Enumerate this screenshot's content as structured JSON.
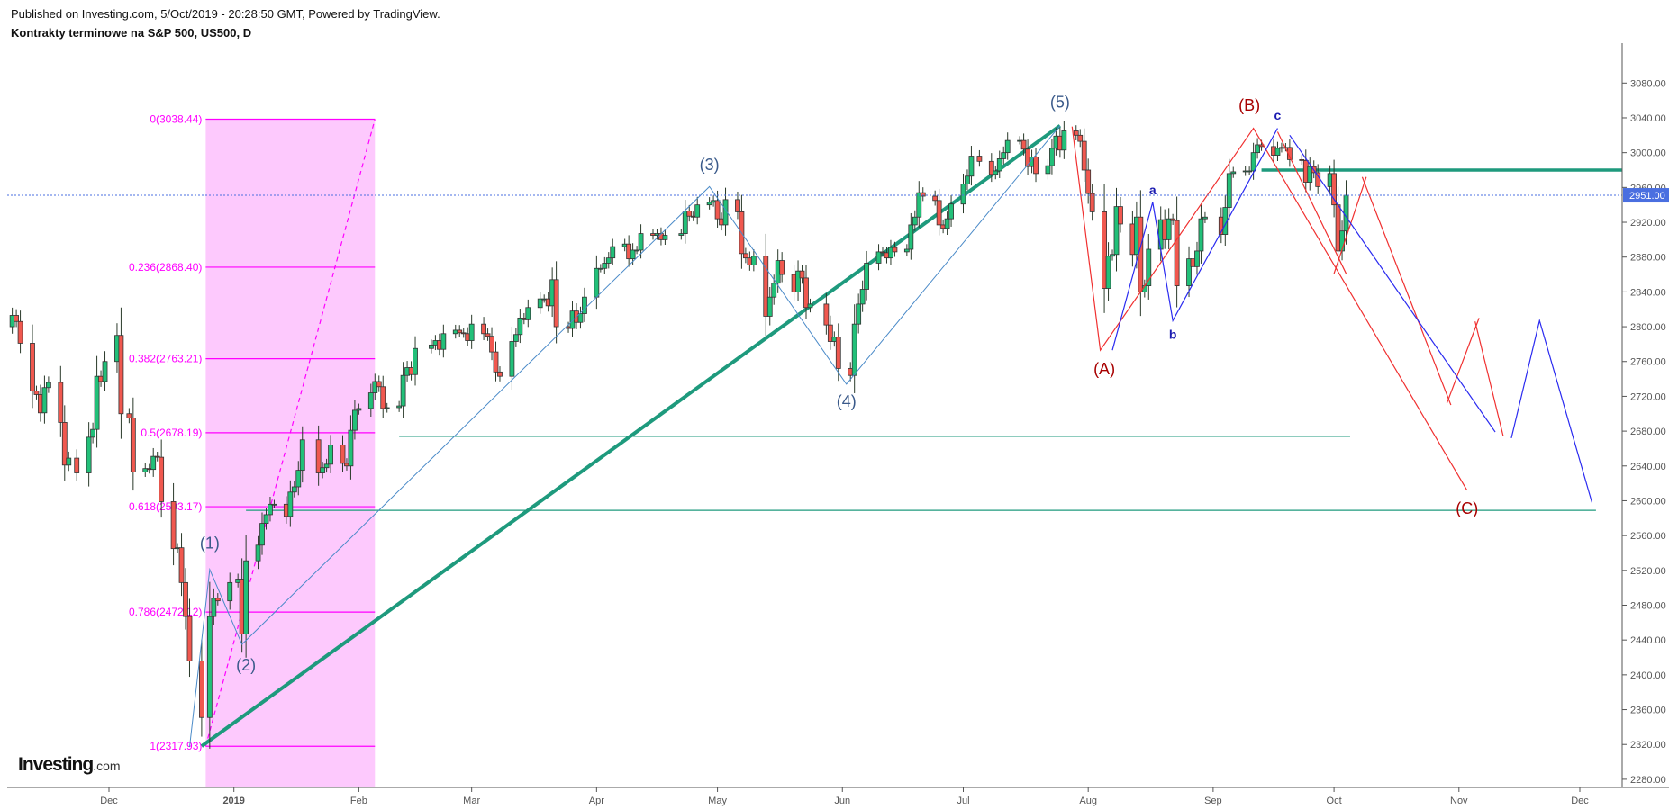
{
  "header": {
    "published": "Published on Investing.com, 5/Oct/2019 - 20:28:50 GMT, Powered by TradingView.",
    "title": "Kontrakty terminowe na S&P 500, US500, D"
  },
  "logo": {
    "main": "Investing",
    "suffix": ".com"
  },
  "colors": {
    "up": "#22c079",
    "down": "#f0584f",
    "teal": "#1e9a7d",
    "fib": "#ff00ff",
    "fib_fill": "#fdc9fd",
    "elliott": "#4a8ac8",
    "abc_blue": "#2a2af0",
    "abc_red": "#f03030",
    "last_price": "#4a6fe0"
  },
  "chart_data": {
    "type": "candlestick",
    "title": "Kontrakty terminowe na S&P 500, US500, D",
    "ylim": [
      2260,
      3110
    ],
    "y_ticks": [
      2280,
      2320,
      2360,
      2400,
      2440,
      2480,
      2520,
      2560,
      2600,
      2640,
      2680,
      2720,
      2760,
      2800,
      2840,
      2880,
      2920,
      2960,
      3000,
      3040,
      3080
    ],
    "x_ticks": [
      {
        "label": "Dec",
        "date": "2018-12-01"
      },
      {
        "label": "2019",
        "date": "2019-01-01",
        "bold": true
      },
      {
        "label": "Feb",
        "date": "2019-02-01"
      },
      {
        "label": "Mar",
        "date": "2019-03-01"
      },
      {
        "label": "Apr",
        "date": "2019-04-01"
      },
      {
        "label": "May",
        "date": "2019-05-01"
      },
      {
        "label": "Jun",
        "date": "2019-06-01"
      },
      {
        "label": "Jul",
        "date": "2019-07-01"
      },
      {
        "label": "Aug",
        "date": "2019-08-01"
      },
      {
        "label": "Sep",
        "date": "2019-09-01"
      },
      {
        "label": "Oct",
        "date": "2019-10-01"
      },
      {
        "label": "Nov",
        "date": "2019-11-01"
      },
      {
        "label": "Dec",
        "date": "2019-12-01"
      }
    ],
    "last_price": {
      "value": 2951.0,
      "label": "2951.00"
    },
    "start_open": 2800,
    "closes": [
      [
        "2018-11-07",
        2813
      ],
      [
        "2018-11-08",
        2806
      ],
      [
        "2018-11-09",
        2781
      ],
      [
        "2018-11-12",
        2726
      ],
      [
        "2018-11-13",
        2722
      ],
      [
        "2018-11-14",
        2701
      ],
      [
        "2018-11-15",
        2730
      ],
      [
        "2018-11-16",
        2736
      ],
      [
        "2018-11-19",
        2690
      ],
      [
        "2018-11-20",
        2641
      ],
      [
        "2018-11-21",
        2649
      ],
      [
        "2018-11-23",
        2632
      ],
      [
        "2018-11-26",
        2673
      ],
      [
        "2018-11-27",
        2682
      ],
      [
        "2018-11-28",
        2743
      ],
      [
        "2018-11-29",
        2737
      ],
      [
        "2018-11-30",
        2760
      ],
      [
        "2018-12-03",
        2790
      ],
      [
        "2018-12-04",
        2700
      ],
      [
        "2018-12-06",
        2695
      ],
      [
        "2018-12-07",
        2633
      ],
      [
        "2018-12-10",
        2637
      ],
      [
        "2018-12-11",
        2636
      ],
      [
        "2018-12-12",
        2651
      ],
      [
        "2018-12-13",
        2650
      ],
      [
        "2018-12-14",
        2599
      ],
      [
        "2018-12-17",
        2545
      ],
      [
        "2018-12-18",
        2546
      ],
      [
        "2018-12-19",
        2506
      ],
      [
        "2018-12-20",
        2467
      ],
      [
        "2018-12-21",
        2416
      ],
      [
        "2018-12-24",
        2351
      ],
      [
        "2018-12-26",
        2467
      ],
      [
        "2018-12-27",
        2488
      ],
      [
        "2018-12-28",
        2485
      ],
      [
        "2018-12-31",
        2506
      ],
      [
        "2019-01-02",
        2510
      ],
      [
        "2019-01-03",
        2447
      ],
      [
        "2019-01-04",
        2531
      ],
      [
        "2019-01-07",
        2549
      ],
      [
        "2019-01-08",
        2574
      ],
      [
        "2019-01-09",
        2584
      ],
      [
        "2019-01-10",
        2596
      ],
      [
        "2019-01-11",
        2596
      ],
      [
        "2019-01-14",
        2582
      ],
      [
        "2019-01-15",
        2610
      ],
      [
        "2019-01-16",
        2616
      ],
      [
        "2019-01-17",
        2635
      ],
      [
        "2019-01-18",
        2670
      ],
      [
        "2019-01-22",
        2632
      ],
      [
        "2019-01-23",
        2638
      ],
      [
        "2019-01-24",
        2642
      ],
      [
        "2019-01-25",
        2664
      ],
      [
        "2019-01-28",
        2643
      ],
      [
        "2019-01-29",
        2640
      ],
      [
        "2019-01-30",
        2681
      ],
      [
        "2019-01-31",
        2704
      ],
      [
        "2019-02-01",
        2706
      ],
      [
        "2019-02-04",
        2724
      ],
      [
        "2019-02-05",
        2737
      ],
      [
        "2019-02-06",
        2731
      ],
      [
        "2019-02-07",
        2706
      ],
      [
        "2019-02-08",
        2707
      ],
      [
        "2019-02-11",
        2709
      ],
      [
        "2019-02-12",
        2744
      ],
      [
        "2019-02-13",
        2753
      ],
      [
        "2019-02-14",
        2745
      ],
      [
        "2019-02-15",
        2775
      ],
      [
        "2019-02-19",
        2779
      ],
      [
        "2019-02-20",
        2784
      ],
      [
        "2019-02-21",
        2774
      ],
      [
        "2019-02-22",
        2792
      ],
      [
        "2019-02-25",
        2796
      ],
      [
        "2019-02-26",
        2793
      ],
      [
        "2019-02-27",
        2792
      ],
      [
        "2019-02-28",
        2784
      ],
      [
        "2019-03-01",
        2803
      ],
      [
        "2019-03-04",
        2792
      ],
      [
        "2019-03-05",
        2789
      ],
      [
        "2019-03-06",
        2771
      ],
      [
        "2019-03-07",
        2748
      ],
      [
        "2019-03-08",
        2743
      ],
      [
        "2019-03-11",
        2783
      ],
      [
        "2019-03-12",
        2791
      ],
      [
        "2019-03-13",
        2810
      ],
      [
        "2019-03-14",
        2808
      ],
      [
        "2019-03-15",
        2822
      ],
      [
        "2019-03-18",
        2832
      ],
      [
        "2019-03-19",
        2832
      ],
      [
        "2019-03-20",
        2824
      ],
      [
        "2019-03-21",
        2854
      ],
      [
        "2019-03-22",
        2800
      ],
      [
        "2019-03-25",
        2798
      ],
      [
        "2019-03-26",
        2818
      ],
      [
        "2019-03-27",
        2805
      ],
      [
        "2019-03-28",
        2815
      ],
      [
        "2019-03-29",
        2834
      ],
      [
        "2019-04-01",
        2867
      ],
      [
        "2019-04-02",
        2867
      ],
      [
        "2019-04-03",
        2873
      ],
      [
        "2019-04-04",
        2879
      ],
      [
        "2019-04-05",
        2892
      ],
      [
        "2019-04-08",
        2895
      ],
      [
        "2019-04-09",
        2878
      ],
      [
        "2019-04-10",
        2888
      ],
      [
        "2019-04-11",
        2888
      ],
      [
        "2019-04-12",
        2907
      ],
      [
        "2019-04-15",
        2905
      ],
      [
        "2019-04-16",
        2907
      ],
      [
        "2019-04-17",
        2900
      ],
      [
        "2019-04-18",
        2905
      ],
      [
        "2019-04-22",
        2907
      ],
      [
        "2019-04-23",
        2933
      ],
      [
        "2019-04-24",
        2927
      ],
      [
        "2019-04-25",
        2926
      ],
      [
        "2019-04-26",
        2940
      ],
      [
        "2019-04-29",
        2943
      ],
      [
        "2019-04-30",
        2945
      ],
      [
        "2019-05-01",
        2924
      ],
      [
        "2019-05-02",
        2917
      ],
      [
        "2019-05-03",
        2946
      ],
      [
        "2019-05-06",
        2932
      ],
      [
        "2019-05-07",
        2884
      ],
      [
        "2019-05-08",
        2879
      ],
      [
        "2019-05-09",
        2871
      ],
      [
        "2019-05-10",
        2881
      ],
      [
        "2019-05-13",
        2812
      ],
      [
        "2019-05-14",
        2834
      ],
      [
        "2019-05-15",
        2850
      ],
      [
        "2019-05-16",
        2876
      ],
      [
        "2019-05-17",
        2860
      ],
      [
        "2019-05-20",
        2840
      ],
      [
        "2019-05-21",
        2864
      ],
      [
        "2019-05-22",
        2856
      ],
      [
        "2019-05-23",
        2822
      ],
      [
        "2019-05-24",
        2826
      ],
      [
        "2019-05-28",
        2802
      ],
      [
        "2019-05-29",
        2783
      ],
      [
        "2019-05-30",
        2788
      ],
      [
        "2019-05-31",
        2752
      ],
      [
        "2019-06-03",
        2744
      ],
      [
        "2019-06-04",
        2803
      ],
      [
        "2019-06-05",
        2826
      ],
      [
        "2019-06-06",
        2843
      ],
      [
        "2019-06-07",
        2873
      ],
      [
        "2019-06-10",
        2886
      ],
      [
        "2019-06-11",
        2885
      ],
      [
        "2019-06-12",
        2879
      ],
      [
        "2019-06-13",
        2891
      ],
      [
        "2019-06-14",
        2886
      ],
      [
        "2019-06-17",
        2889
      ],
      [
        "2019-06-18",
        2917
      ],
      [
        "2019-06-19",
        2926
      ],
      [
        "2019-06-20",
        2954
      ],
      [
        "2019-06-21",
        2950
      ],
      [
        "2019-06-24",
        2945
      ],
      [
        "2019-06-25",
        2917
      ],
      [
        "2019-06-26",
        2913
      ],
      [
        "2019-06-27",
        2924
      ],
      [
        "2019-06-28",
        2941
      ],
      [
        "2019-07-01",
        2964
      ],
      [
        "2019-07-02",
        2973
      ],
      [
        "2019-07-03",
        2996
      ],
      [
        "2019-07-05",
        2990
      ],
      [
        "2019-07-08",
        2975
      ],
      [
        "2019-07-09",
        2979
      ],
      [
        "2019-07-10",
        2993
      ],
      [
        "2019-07-11",
        3000
      ],
      [
        "2019-07-12",
        3014
      ],
      [
        "2019-07-15",
        3014
      ],
      [
        "2019-07-16",
        3004
      ],
      [
        "2019-07-17",
        2984
      ],
      [
        "2019-07-18",
        2995
      ],
      [
        "2019-07-19",
        2976
      ],
      [
        "2019-07-22",
        2985
      ],
      [
        "2019-07-23",
        3005
      ],
      [
        "2019-07-24",
        3019
      ],
      [
        "2019-07-25",
        3003
      ],
      [
        "2019-07-26",
        3025
      ],
      [
        "2019-07-29",
        3020
      ],
      [
        "2019-07-30",
        3013
      ],
      [
        "2019-07-31",
        2980
      ],
      [
        "2019-08-01",
        2953
      ],
      [
        "2019-08-02",
        2932
      ],
      [
        "2019-08-05",
        2844
      ],
      [
        "2019-08-06",
        2881
      ],
      [
        "2019-08-07",
        2883
      ],
      [
        "2019-08-08",
        2938
      ],
      [
        "2019-08-09",
        2918
      ],
      [
        "2019-08-12",
        2883
      ],
      [
        "2019-08-13",
        2926
      ],
      [
        "2019-08-14",
        2840
      ],
      [
        "2019-08-15",
        2847
      ],
      [
        "2019-08-16",
        2889
      ],
      [
        "2019-08-19",
        2923
      ],
      [
        "2019-08-20",
        2900
      ],
      [
        "2019-08-21",
        2924
      ],
      [
        "2019-08-22",
        2922
      ],
      [
        "2019-08-23",
        2847
      ],
      [
        "2019-08-26",
        2878
      ],
      [
        "2019-08-27",
        2869
      ],
      [
        "2019-08-28",
        2887
      ],
      [
        "2019-08-29",
        2924
      ],
      [
        "2019-08-30",
        2926
      ],
      [
        "2019-09-03",
        2906
      ],
      [
        "2019-09-04",
        2937
      ],
      [
        "2019-09-05",
        2976
      ],
      [
        "2019-09-06",
        2978
      ],
      [
        "2019-09-09",
        2979
      ],
      [
        "2019-09-10",
        2979
      ],
      [
        "2019-09-11",
        3000
      ],
      [
        "2019-09-12",
        3009
      ],
      [
        "2019-09-13",
        3007
      ],
      [
        "2019-09-16",
        2997
      ],
      [
        "2019-09-17",
        3005
      ],
      [
        "2019-09-18",
        3006
      ],
      [
        "2019-09-19",
        3006
      ],
      [
        "2019-09-20",
        2992
      ],
      [
        "2019-09-23",
        2991
      ],
      [
        "2019-09-24",
        2966
      ],
      [
        "2019-09-25",
        2984
      ],
      [
        "2019-09-26",
        2977
      ],
      [
        "2019-09-27",
        2961
      ],
      [
        "2019-09-30",
        2976
      ],
      [
        "2019-10-01",
        2940
      ],
      [
        "2019-10-02",
        2887
      ],
      [
        "2019-10-03",
        2910
      ],
      [
        "2019-10-04",
        2951
      ]
    ],
    "fibonacci": {
      "from": "2018-12-25",
      "to": "2019-02-05",
      "low": 2317.93,
      "high": 3038.44,
      "levels": [
        {
          "label": "0(3038.44)",
          "price": 3038.44
        },
        {
          "label": "0.236(2868.40)",
          "price": 2868.4
        },
        {
          "label": "0.382(2763.21)",
          "price": 2763.21
        },
        {
          "label": "0.5(2678.19)",
          "price": 2678.19
        },
        {
          "label": "0.618(2593.17)",
          "price": 2593.17
        },
        {
          "label": "0.786(2472.12)",
          "price": 2472.12
        },
        {
          "label": "1(2317.93)",
          "price": 2317.93
        }
      ]
    },
    "trendlines": [
      {
        "name": "uptrend-line",
        "color": "teal",
        "width": 4,
        "points": [
          [
            "2018-12-24",
            2318
          ],
          [
            "2019-07-25",
            3031
          ]
        ]
      },
      {
        "name": "resistance-line",
        "color": "teal",
        "width": 3.5,
        "points": [
          [
            "2019-09-13",
            2980
          ],
          [
            "2019-12-12",
            2980
          ]
        ]
      },
      {
        "name": "support-line-2675",
        "color": "teal",
        "width": 1.3,
        "points": [
          [
            "2019-02-11",
            2674
          ],
          [
            "2019-10-05",
            2674
          ]
        ]
      },
      {
        "name": "support-line-2590",
        "color": "teal",
        "width": 1.3,
        "points": [
          [
            "2019-01-04",
            2589
          ],
          [
            "2019-12-05",
            2589
          ]
        ]
      }
    ],
    "elliott_impulse": {
      "points": [
        [
          "2018-12-21",
          2317
        ],
        [
          "2018-12-26",
          2521
        ],
        [
          "2019-01-03",
          2435
        ],
        [
          "2019-04-29",
          2961
        ],
        [
          "2019-06-02",
          2734
        ],
        [
          "2019-07-25",
          3031
        ]
      ],
      "labels": [
        {
          "text": "(1)",
          "date": "2018-12-26",
          "price": 2545
        },
        {
          "text": "(2)",
          "date": "2019-01-04",
          "price": 2405
        },
        {
          "text": "(3)",
          "date": "2019-04-29",
          "price": 2980
        },
        {
          "text": "(4)",
          "date": "2019-06-02",
          "price": 2708
        },
        {
          "text": "(5)",
          "date": "2019-07-25",
          "price": 3052
        }
      ]
    },
    "abc_red": {
      "points": [
        [
          "2019-07-28",
          3030
        ],
        [
          "2019-08-04",
          2773
        ],
        [
          "2019-09-11",
          3028
        ],
        [
          "2019-11-03",
          2612
        ]
      ],
      "extra_segments": [
        [
          [
            "2019-09-17",
            3024
          ],
          [
            "2019-10-04",
            2861
          ]
        ],
        [
          [
            "2019-10-01",
            2861
          ],
          [
            "2019-10-09",
            2972
          ]
        ],
        [
          [
            "2019-10-08",
            2972
          ],
          [
            "2019-10-30",
            2710
          ]
        ],
        [
          [
            "2019-10-29",
            2712
          ],
          [
            "2019-11-06",
            2810
          ]
        ],
        [
          [
            "2019-11-05",
            2806
          ],
          [
            "2019-11-12",
            2674
          ]
        ]
      ],
      "labels": [
        {
          "text": "(A)",
          "date": "2019-08-05",
          "price": 2745
        },
        {
          "text": "(B)",
          "date": "2019-09-10",
          "price": 3048
        },
        {
          "text": "(C)",
          "date": "2019-11-03",
          "price": 2585
        }
      ]
    },
    "abc_blue": {
      "points": [
        [
          "2019-08-07",
          2773
        ],
        [
          "2019-08-17",
          2943
        ],
        [
          "2019-08-22",
          2807
        ],
        [
          "2019-09-17",
          3028
        ]
      ],
      "segments": [
        [
          [
            "2019-09-20",
            3020
          ],
          [
            "2019-11-10",
            2679
          ]
        ],
        [
          [
            "2019-11-14",
            2672
          ],
          [
            "2019-11-21",
            2807
          ],
          [
            "2019-12-04",
            2598
          ]
        ]
      ],
      "labels": [
        {
          "text": "a",
          "date": "2019-08-17",
          "price": 2952
        },
        {
          "text": "b",
          "date": "2019-08-22",
          "price": 2786
        },
        {
          "text": "c",
          "date": "2019-09-17",
          "price": 3038
        }
      ]
    }
  }
}
